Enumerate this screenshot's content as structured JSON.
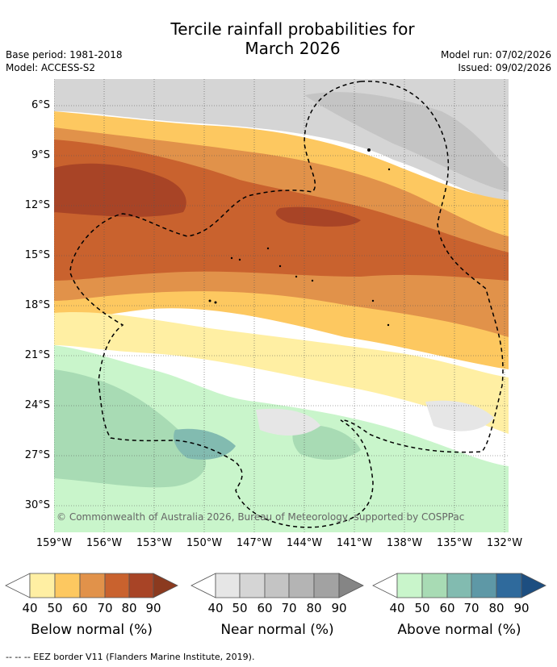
{
  "title": {
    "line1": "Tercile rainfall probabilities for",
    "line2": "March 2026"
  },
  "meta": {
    "base_period": "Base period: 1981-2018",
    "model": "Model: ACCESS-S2",
    "model_run": "Model run: 07/02/2026",
    "issued": "Issued: 09/02/2026"
  },
  "axes": {
    "latitudes": [
      "6°S",
      "9°S",
      "12°S",
      "15°S",
      "18°S",
      "21°S",
      "24°S",
      "27°S",
      "30°S"
    ],
    "longitudes": [
      "159°W",
      "156°W",
      "153°W",
      "150°W",
      "147°W",
      "144°W",
      "141°W",
      "138°W",
      "135°W",
      "132°W"
    ]
  },
  "copyright": "© Commonwealth of Australia 2026, Bureau of Meteorology, supported by COSPPac",
  "legends": [
    {
      "title": "Below normal (%)",
      "ticks": [
        "40",
        "50",
        "60",
        "70",
        "80",
        "90"
      ],
      "colors": [
        "#ffefa3",
        "#fdc860",
        "#e1924a",
        "#c9622e",
        "#a84426"
      ]
    },
    {
      "title": "Near normal (%)",
      "ticks": [
        "40",
        "50",
        "60",
        "70",
        "80",
        "90"
      ],
      "colors": [
        "#e6e6e6",
        "#d5d5d5",
        "#c4c4c4",
        "#b4b4b4",
        "#a2a2a2"
      ]
    },
    {
      "title": "Above normal (%)",
      "ticks": [
        "40",
        "50",
        "60",
        "70",
        "80",
        "90"
      ],
      "colors": [
        "#c9f5cb",
        "#a8dbb4",
        "#82bbb0",
        "#5e98a6",
        "#2f6a9c"
      ]
    }
  ],
  "footnote": "-- -- -- EEZ border V11 (Flanders Marine Institute, 2019)."
}
